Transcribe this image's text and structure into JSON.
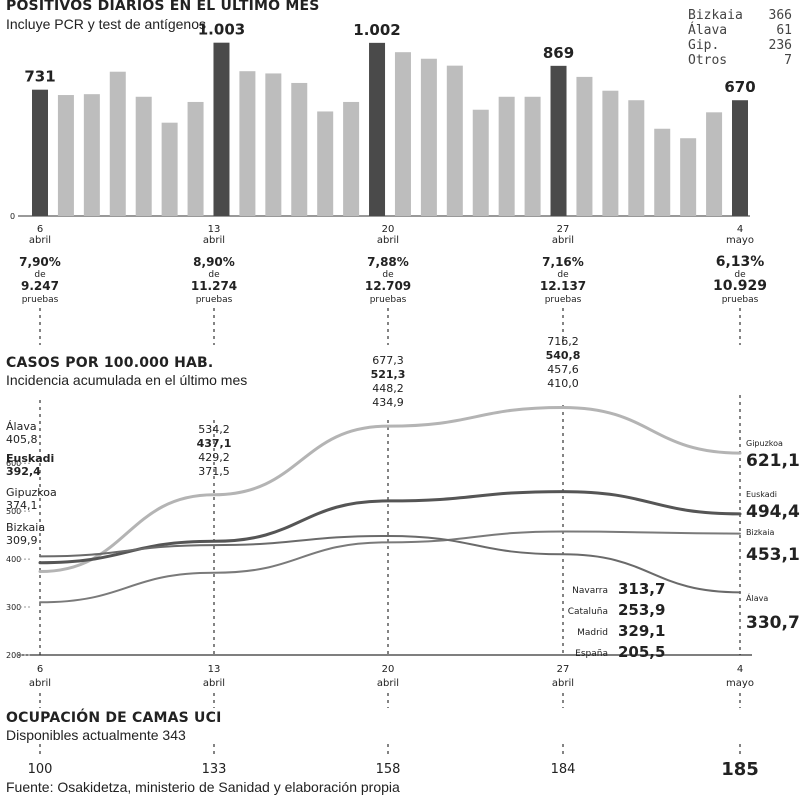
{
  "colors": {
    "bar_fill": "#bdbdbd",
    "bar_highlight": "#4a4a4a",
    "line_gipuzkoa": "#b4b4b4",
    "line_euskadi": "#555555",
    "line_bizkaia": "#7a7a7a",
    "line_alava": "#6a6a6a",
    "text": "#222222"
  },
  "section1": {
    "title": "POSITIVOS DIARIOS EN EL ÚLTIMO MES",
    "subtitle": "Incluye PCR y test de antígenos"
  },
  "breakdown": [
    {
      "name": "Bizkaia",
      "value": "366"
    },
    {
      "name": "Álava",
      "value": "61"
    },
    {
      "name": "Gip.",
      "value": "236"
    },
    {
      "name": "Otros",
      "value": "7"
    }
  ],
  "date_labels": [
    {
      "day": "6",
      "month": "abril"
    },
    {
      "day": "13",
      "month": "abril"
    },
    {
      "day": "20",
      "month": "abril"
    },
    {
      "day": "27",
      "month": "abril"
    },
    {
      "day": "4",
      "month": "mayo"
    }
  ],
  "positivity": [
    {
      "pct": "7,90%",
      "de": "de",
      "tests": "9.247",
      "word": "pruebas"
    },
    {
      "pct": "8,90%",
      "de": "de",
      "tests": "11.274",
      "word": "pruebas"
    },
    {
      "pct": "7,88%",
      "de": "de",
      "tests": "12.709",
      "word": "pruebas"
    },
    {
      "pct": "7,16%",
      "de": "de",
      "tests": "12.137",
      "word": "pruebas"
    },
    {
      "pct": "6,13%",
      "de": "de",
      "tests": "10.929",
      "word": "pruebas"
    }
  ],
  "section2": {
    "title": "CASOS POR 100.000 HAB.",
    "subtitle": "Incidencia acumulada en el último mes"
  },
  "left_labels": [
    {
      "name": "Álava",
      "value": "405,8"
    },
    {
      "name": "Euskadi",
      "value": "392,4"
    },
    {
      "name": "Gipuzkoa",
      "value": "374,1"
    },
    {
      "name": "Bizkaia",
      "value": "309,9"
    }
  ],
  "annot_13": [
    "534,2",
    "437,1",
    "429,2",
    "371,5"
  ],
  "annot_20": [
    "677,3",
    "521,3",
    "448,2",
    "434,9"
  ],
  "annot_27": [
    "716,2",
    "540,8",
    "457,6",
    "410,0"
  ],
  "right_labels": [
    {
      "name": "Gipuzkoa",
      "value": "621,1"
    },
    {
      "name": "Euskadi",
      "value": "494,4"
    },
    {
      "name": "Bizkaia",
      "value": "453,1"
    },
    {
      "name": "Álava",
      "value": "330,7"
    }
  ],
  "regions": [
    {
      "name": "Navarra",
      "value": "313,7"
    },
    {
      "name": "Cataluña",
      "value": "253,9"
    },
    {
      "name": "Madrid",
      "value": "329,1"
    },
    {
      "name": "España",
      "value": "205,5"
    }
  ],
  "section3": {
    "title": "OCUPACIÓN DE CAMAS UCI",
    "subtitle": "Disponibles actualmente 343"
  },
  "uci_values": [
    "100",
    "133",
    "158",
    "184",
    "185"
  ],
  "footer": "Fuente: Osakidetza, ministerio de Sanidad y elaboración propia",
  "chart_data": [
    {
      "type": "bar",
      "title": "POSITIVOS DIARIOS EN EL ÚLTIMO MES",
      "subtitle": "Incluye PCR y test de antígenos",
      "x_ticks": [
        "6 abril",
        "13 abril",
        "20 abril",
        "27 abril",
        "4 mayo"
      ],
      "values": [
        731,
        700,
        705,
        835,
        690,
        540,
        660,
        1003,
        838,
        825,
        770,
        605,
        660,
        1002,
        948,
        910,
        870,
        615,
        690,
        690,
        869,
        805,
        725,
        670,
        505,
        450,
        600,
        670
      ],
      "labeled_values": {
        "0": "731",
        "7": "1.003",
        "13": "1.002",
        "20": "869",
        "27": "670"
      },
      "highlight_indices": [
        0,
        7,
        13,
        20,
        27
      ],
      "ylim": [
        0,
        1100
      ]
    },
    {
      "type": "line",
      "title": "CASOS POR 100.000 HAB.",
      "subtitle": "Incidencia acumulada en el último mes",
      "x_ticks": [
        "6 abril",
        "13 abril",
        "20 abril",
        "27 abril",
        "4 mayo"
      ],
      "x": [
        0,
        7,
        14,
        21,
        28
      ],
      "y_ticks": [
        200,
        300,
        400,
        500,
        600
      ],
      "ylim": [
        200,
        720
      ],
      "series": [
        {
          "name": "Gipuzkoa",
          "values": [
            374.1,
            534.2,
            677.3,
            716.2,
            621.1
          ]
        },
        {
          "name": "Euskadi",
          "values": [
            392.4,
            437.1,
            521.3,
            540.8,
            494.4
          ]
        },
        {
          "name": "Bizkaia",
          "values": [
            309.9,
            371.5,
            434.9,
            457.6,
            453.1
          ]
        },
        {
          "name": "Álava",
          "values": [
            405.8,
            429.2,
            448.2,
            410.0,
            330.7
          ]
        }
      ]
    }
  ]
}
